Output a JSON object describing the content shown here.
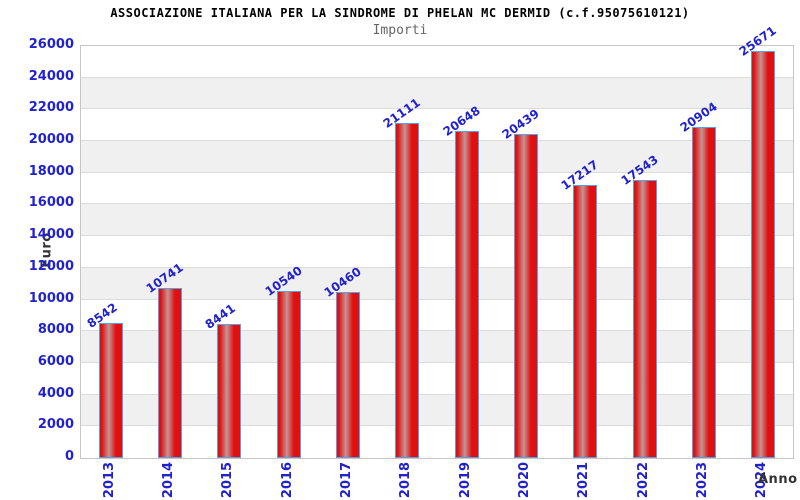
{
  "chart_data": {
    "type": "bar",
    "title": "ASSOCIAZIONE ITALIANA PER LA SINDROME DI PHELAN MC DERMID (c.f.95075610121)",
    "subtitle": "Importi",
    "xlabel": "Anno",
    "ylabel": "Euro",
    "categories": [
      "2013",
      "2014",
      "2015",
      "2016",
      "2017",
      "2018",
      "2019",
      "2020",
      "2021",
      "2022",
      "2023",
      "2024"
    ],
    "values": [
      8542,
      10741,
      8441,
      10540,
      10460,
      21111,
      20648,
      20439,
      17217,
      17543,
      20904,
      25671
    ],
    "ylim": [
      0,
      26000
    ],
    "ytick_step": 2000,
    "grid": true,
    "alternating_bands": true,
    "legend_position": "none",
    "bar_value_labels": true,
    "colors": {
      "label_blue": "#2222cc",
      "bar_red": "#e01010",
      "bar_highlight": "#c59494",
      "bar_border": "#58a0e6",
      "band_gray": "#f0f0f0",
      "grid_line": "#dcdcdc",
      "plot_border": "#c6c6c6",
      "title_black": "#000000",
      "subtitle_gray": "#666666",
      "axis_label_gray": "#333333"
    }
  }
}
